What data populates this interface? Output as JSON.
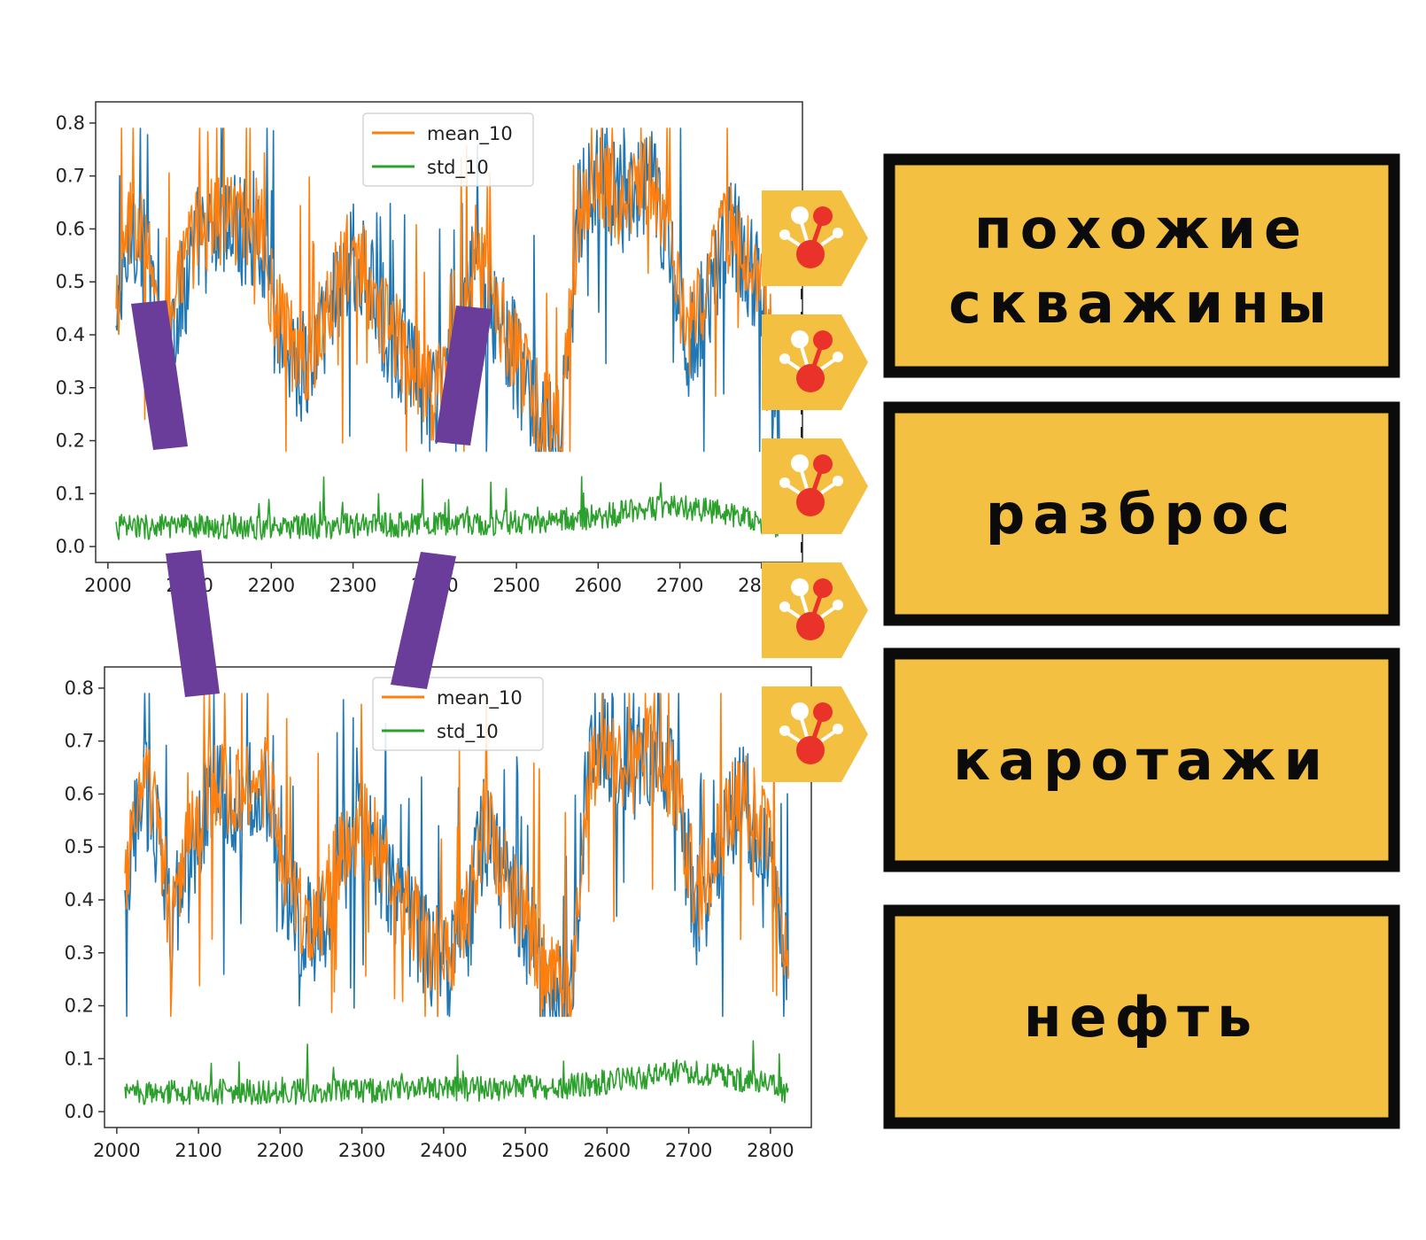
{
  "chart_data": [
    {
      "type": "line",
      "x_range": [
        2010,
        2822
      ],
      "xlim": [
        1985,
        2850
      ],
      "ylim": [
        -0.03,
        0.84
      ],
      "x_ticks": [
        "2000",
        "2100",
        "2200",
        "2300",
        "2400",
        "2500",
        "2600",
        "2700",
        "2800"
      ],
      "y_ticks": [
        "0.0",
        "0.1",
        "0.2",
        "0.3",
        "0.4",
        "0.5",
        "0.6",
        "0.7",
        "0.8"
      ],
      "legend_position": "top-center",
      "legend": [
        "mean_10",
        "std_10"
      ],
      "series": [
        {
          "color": "#1f77b4",
          "profile": [
            [
              2010,
              0.39
            ],
            [
              2030,
              0.62
            ],
            [
              2050,
              0.52
            ],
            [
              2065,
              0.34
            ],
            [
              2085,
              0.45
            ],
            [
              2110,
              0.58
            ],
            [
              2150,
              0.6
            ],
            [
              2185,
              0.6
            ],
            [
              2205,
              0.42
            ],
            [
              2225,
              0.36
            ],
            [
              2245,
              0.33
            ],
            [
              2270,
              0.45
            ],
            [
              2300,
              0.55
            ],
            [
              2330,
              0.45
            ],
            [
              2350,
              0.38
            ],
            [
              2375,
              0.32
            ],
            [
              2400,
              0.26
            ],
            [
              2430,
              0.35
            ],
            [
              2450,
              0.55
            ],
            [
              2470,
              0.45
            ],
            [
              2500,
              0.35
            ],
            [
              2530,
              0.22
            ],
            [
              2555,
              0.2
            ],
            [
              2575,
              0.62
            ],
            [
              2600,
              0.7
            ],
            [
              2630,
              0.65
            ],
            [
              2665,
              0.7
            ],
            [
              2690,
              0.55
            ],
            [
              2710,
              0.38
            ],
            [
              2730,
              0.45
            ],
            [
              2760,
              0.6
            ],
            [
              2780,
              0.55
            ],
            [
              2800,
              0.5
            ],
            [
              2822,
              0.25
            ]
          ],
          "spread": 0.11
        },
        {
          "name": "mean_10",
          "color": "#ff7f0e",
          "profile": [
            [
              2010,
              0.42
            ],
            [
              2030,
              0.64
            ],
            [
              2050,
              0.55
            ],
            [
              2065,
              0.37
            ],
            [
              2085,
              0.48
            ],
            [
              2110,
              0.6
            ],
            [
              2150,
              0.62
            ],
            [
              2185,
              0.62
            ],
            [
              2205,
              0.44
            ],
            [
              2225,
              0.38
            ],
            [
              2245,
              0.35
            ],
            [
              2270,
              0.47
            ],
            [
              2300,
              0.56
            ],
            [
              2330,
              0.46
            ],
            [
              2350,
              0.4
            ],
            [
              2375,
              0.34
            ],
            [
              2400,
              0.28
            ],
            [
              2430,
              0.37
            ],
            [
              2450,
              0.56
            ],
            [
              2470,
              0.47
            ],
            [
              2500,
              0.37
            ],
            [
              2530,
              0.25
            ],
            [
              2555,
              0.23
            ],
            [
              2575,
              0.62
            ],
            [
              2600,
              0.69
            ],
            [
              2630,
              0.65
            ],
            [
              2665,
              0.69
            ],
            [
              2690,
              0.56
            ],
            [
              2710,
              0.4
            ],
            [
              2730,
              0.47
            ],
            [
              2760,
              0.61
            ],
            [
              2780,
              0.56
            ],
            [
              2800,
              0.52
            ],
            [
              2822,
              0.28
            ]
          ],
          "spread": 0.09
        },
        {
          "name": "std_10",
          "color": "#2ca02c",
          "profile": [
            [
              2010,
              0.03
            ],
            [
              2200,
              0.03
            ],
            [
              2400,
              0.035
            ],
            [
              2550,
              0.04
            ],
            [
              2650,
              0.06
            ],
            [
              2700,
              0.07
            ],
            [
              2780,
              0.05
            ],
            [
              2822,
              0.03
            ]
          ],
          "spread": 0.03
        }
      ]
    },
    {
      "type": "line",
      "x_range": [
        2010,
        2822
      ],
      "xlim": [
        1985,
        2850
      ],
      "ylim": [
        -0.03,
        0.84
      ],
      "x_ticks": [
        "2000",
        "2100",
        "2200",
        "2300",
        "2400",
        "2500",
        "2600",
        "2700",
        "2800"
      ],
      "y_ticks": [
        "0.0",
        "0.1",
        "0.2",
        "0.3",
        "0.4",
        "0.5",
        "0.6",
        "0.7",
        "0.8"
      ],
      "legend_position": "top-center",
      "legend": [
        "mean_10",
        "std_10"
      ],
      "series": [
        {
          "color": "#1f77b4",
          "profile": [
            [
              2010,
              0.39
            ],
            [
              2030,
              0.62
            ],
            [
              2050,
              0.52
            ],
            [
              2065,
              0.34
            ],
            [
              2085,
              0.45
            ],
            [
              2110,
              0.58
            ],
            [
              2150,
              0.6
            ],
            [
              2185,
              0.6
            ],
            [
              2205,
              0.42
            ],
            [
              2225,
              0.36
            ],
            [
              2245,
              0.33
            ],
            [
              2270,
              0.45
            ],
            [
              2300,
              0.55
            ],
            [
              2330,
              0.45
            ],
            [
              2350,
              0.38
            ],
            [
              2375,
              0.32
            ],
            [
              2400,
              0.26
            ],
            [
              2430,
              0.35
            ],
            [
              2450,
              0.55
            ],
            [
              2470,
              0.45
            ],
            [
              2500,
              0.35
            ],
            [
              2530,
              0.22
            ],
            [
              2555,
              0.2
            ],
            [
              2575,
              0.62
            ],
            [
              2600,
              0.7
            ],
            [
              2630,
              0.65
            ],
            [
              2665,
              0.7
            ],
            [
              2690,
              0.55
            ],
            [
              2710,
              0.38
            ],
            [
              2730,
              0.45
            ],
            [
              2760,
              0.6
            ],
            [
              2780,
              0.55
            ],
            [
              2800,
              0.5
            ],
            [
              2822,
              0.25
            ]
          ],
          "spread": 0.11
        },
        {
          "name": "mean_10",
          "color": "#ff7f0e",
          "profile": [
            [
              2010,
              0.42
            ],
            [
              2030,
              0.64
            ],
            [
              2050,
              0.55
            ],
            [
              2065,
              0.37
            ],
            [
              2085,
              0.48
            ],
            [
              2110,
              0.6
            ],
            [
              2150,
              0.62
            ],
            [
              2185,
              0.62
            ],
            [
              2205,
              0.44
            ],
            [
              2225,
              0.38
            ],
            [
              2245,
              0.35
            ],
            [
              2270,
              0.47
            ],
            [
              2300,
              0.56
            ],
            [
              2330,
              0.46
            ],
            [
              2350,
              0.4
            ],
            [
              2375,
              0.34
            ],
            [
              2400,
              0.28
            ],
            [
              2430,
              0.37
            ],
            [
              2450,
              0.56
            ],
            [
              2470,
              0.47
            ],
            [
              2500,
              0.37
            ],
            [
              2530,
              0.25
            ],
            [
              2555,
              0.23
            ],
            [
              2575,
              0.62
            ],
            [
              2600,
              0.69
            ],
            [
              2630,
              0.65
            ],
            [
              2665,
              0.69
            ],
            [
              2690,
              0.56
            ],
            [
              2710,
              0.4
            ],
            [
              2730,
              0.47
            ],
            [
              2760,
              0.61
            ],
            [
              2780,
              0.56
            ],
            [
              2800,
              0.52
            ],
            [
              2822,
              0.28
            ]
          ],
          "spread": 0.09
        },
        {
          "name": "std_10",
          "color": "#2ca02c",
          "profile": [
            [
              2010,
              0.03
            ],
            [
              2200,
              0.03
            ],
            [
              2400,
              0.035
            ],
            [
              2550,
              0.04
            ],
            [
              2650,
              0.06
            ],
            [
              2700,
              0.07
            ],
            [
              2780,
              0.05
            ],
            [
              2822,
              0.03
            ]
          ],
          "spread": 0.03
        }
      ]
    }
  ],
  "labels": [
    "похожие\nскважины",
    "разброс",
    "каротажи",
    "нефть"
  ],
  "icons": [
    "molecule-badge-icon",
    "molecule-badge-icon",
    "molecule-badge-icon",
    "molecule-badge-icon",
    "molecule-badge-icon"
  ],
  "colors": {
    "label_fill": "#f4c042",
    "label_border": "#0b0b0b",
    "connector": "#6a3d9a",
    "badge_fill": "#f4c042",
    "molecule_red": "#e8322a"
  }
}
